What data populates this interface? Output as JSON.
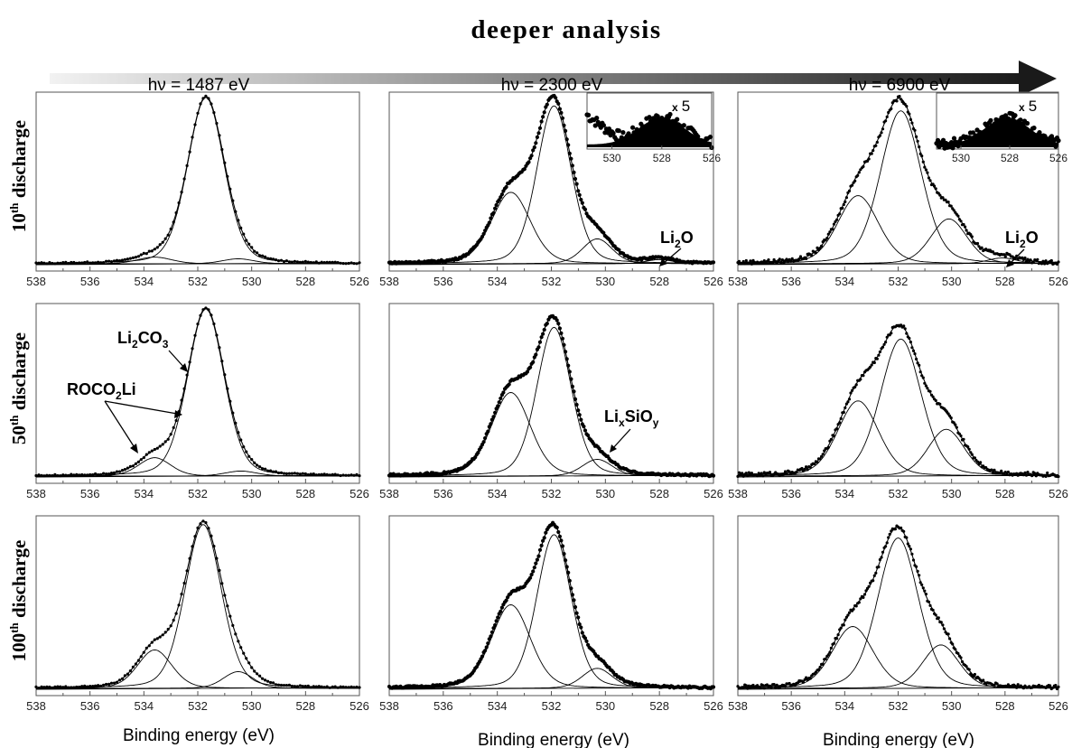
{
  "header": {
    "title": "deeper analysis"
  },
  "columns": [
    {
      "label": "hν = 1487 eV"
    },
    {
      "label": "hν = 2300 eV"
    },
    {
      "label": "hν = 6900 eV"
    }
  ],
  "rows": [
    {
      "label_num": "10",
      "label_sup": "th",
      "label_text": " discharge"
    },
    {
      "label_num": "50",
      "label_sup": "th",
      "label_text": " discharge"
    },
    {
      "label_num": "100",
      "label_sup": "th",
      "label_text": " discharge"
    }
  ],
  "xaxis_label": "Binding energy (eV)",
  "annotations": {
    "li2o": "Li",
    "li2o_sub": "2",
    "li2o_tail": "O",
    "li2co3": "Li",
    "li2co3_sub1": "2",
    "li2co3_mid": "CO",
    "li2co3_sub2": "3",
    "roco2li": "ROCO",
    "roco2li_sub": "2",
    "roco2li_tail": "Li",
    "lixsioy": "Li",
    "lixsioy_sub1": "x",
    "lixsioy_mid": "SiO",
    "lixsioy_sub2": "y",
    "x5_prefix": "x",
    "x5_value": "5"
  },
  "colors": {
    "arrow_start": "#f2f2f2",
    "arrow_end": "#1a1a1a",
    "ink": "#000000"
  },
  "chart_data": {
    "type": "line",
    "description_axes": {
      "xlim": [
        538,
        526
      ],
      "xticks": [
        538,
        536,
        534,
        532,
        530,
        528,
        526
      ],
      "reversed_x": true,
      "y_ticks_shown": false
    },
    "panels": [
      {
        "row": 0,
        "col": 0,
        "components": [
          {
            "center": 531.7,
            "amp": 1.0,
            "fwhm": 1.6
          },
          {
            "center": 533.6,
            "amp": 0.04,
            "fwhm": 1.5
          },
          {
            "center": 530.5,
            "amp": 0.03,
            "fwhm": 1.4
          }
        ]
      },
      {
        "row": 0,
        "col": 1,
        "components": [
          {
            "center": 531.9,
            "amp": 0.95,
            "fwhm": 1.5
          },
          {
            "center": 533.5,
            "amp": 0.43,
            "fwhm": 1.7
          },
          {
            "center": 530.3,
            "amp": 0.15,
            "fwhm": 1.3
          },
          {
            "center": 528.0,
            "amp": 0.025,
            "fwhm": 1.2
          }
        ]
      },
      {
        "row": 0,
        "col": 2,
        "components": [
          {
            "center": 531.9,
            "amp": 0.92,
            "fwhm": 1.8
          },
          {
            "center": 533.5,
            "amp": 0.41,
            "fwhm": 1.8
          },
          {
            "center": 530.1,
            "amp": 0.27,
            "fwhm": 1.6
          },
          {
            "center": 528.1,
            "amp": 0.035,
            "fwhm": 1.3
          }
        ]
      },
      {
        "row": 1,
        "col": 0,
        "components": [
          {
            "center": 531.7,
            "amp": 1.0,
            "fwhm": 1.6
          },
          {
            "center": 533.6,
            "amp": 0.11,
            "fwhm": 1.4
          },
          {
            "center": 530.4,
            "amp": 0.03,
            "fwhm": 1.4
          }
        ]
      },
      {
        "row": 1,
        "col": 1,
        "components": [
          {
            "center": 531.9,
            "amp": 0.89,
            "fwhm": 1.5
          },
          {
            "center": 533.5,
            "amp": 0.5,
            "fwhm": 1.7
          },
          {
            "center": 530.3,
            "amp": 0.1,
            "fwhm": 1.3
          }
        ]
      },
      {
        "row": 1,
        "col": 2,
        "components": [
          {
            "center": 531.9,
            "amp": 0.82,
            "fwhm": 1.8
          },
          {
            "center": 533.5,
            "amp": 0.45,
            "fwhm": 1.8
          },
          {
            "center": 530.2,
            "amp": 0.28,
            "fwhm": 1.6
          }
        ]
      },
      {
        "row": 2,
        "col": 0,
        "components": [
          {
            "center": 531.8,
            "amp": 0.98,
            "fwhm": 1.6
          },
          {
            "center": 533.6,
            "amp": 0.23,
            "fwhm": 1.5
          },
          {
            "center": 530.5,
            "amp": 0.1,
            "fwhm": 1.3
          }
        ]
      },
      {
        "row": 2,
        "col": 1,
        "components": [
          {
            "center": 531.9,
            "amp": 0.92,
            "fwhm": 1.5
          },
          {
            "center": 533.5,
            "amp": 0.5,
            "fwhm": 1.7
          },
          {
            "center": 530.3,
            "amp": 0.12,
            "fwhm": 1.3
          }
        ]
      },
      {
        "row": 2,
        "col": 2,
        "components": [
          {
            "center": 532.0,
            "amp": 0.9,
            "fwhm": 1.8
          },
          {
            "center": 533.7,
            "amp": 0.37,
            "fwhm": 1.8
          },
          {
            "center": 530.4,
            "amp": 0.26,
            "fwhm": 1.6
          }
        ]
      }
    ],
    "insets": [
      {
        "row": 0,
        "col": 1,
        "xlim": [
          531,
          526
        ],
        "xticks": [
          530,
          528,
          526
        ],
        "scale_label": "x 5",
        "peak_center": 528.0
      },
      {
        "row": 0,
        "col": 2,
        "xlim": [
          531,
          526
        ],
        "xticks": [
          530,
          528,
          526
        ],
        "scale_label": "x 5",
        "peak_center": 528.1
      }
    ]
  }
}
